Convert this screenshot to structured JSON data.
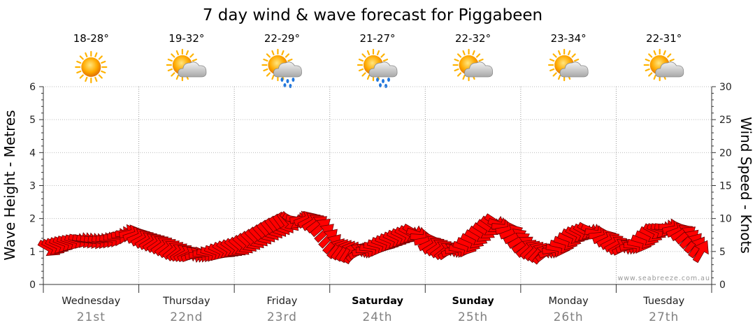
{
  "chart_data": {
    "type": "line",
    "title": "7 day wind & wave forecast for Piggabeen",
    "ylabel": "Wave Height - Metres",
    "y2label": "Wind Speed - Knots",
    "ylim": [
      0,
      6
    ],
    "y2lim": [
      0,
      30
    ],
    "yticks": [
      "0",
      "1",
      "2",
      "3",
      "4",
      "5",
      "6"
    ],
    "y2ticks": [
      "0",
      "5",
      "10",
      "15",
      "20",
      "25",
      "30"
    ],
    "grid": true,
    "days": [
      {
        "day": "Wednesday",
        "date": "21st",
        "temp": "18-28°",
        "weather_icon": "sunny-icon",
        "bold": false
      },
      {
        "day": "Thursday",
        "date": "22nd",
        "temp": "19-32°",
        "weather_icon": "partly-cloudy-icon",
        "bold": false
      },
      {
        "day": "Friday",
        "date": "23rd",
        "temp": "22-29°",
        "weather_icon": "sun-shower-icon",
        "bold": false
      },
      {
        "day": "Saturday",
        "date": "24th",
        "temp": "21-27°",
        "weather_icon": "sun-shower-icon",
        "bold": true
      },
      {
        "day": "Sunday",
        "date": "25th",
        "temp": "22-32°",
        "weather_icon": "partly-cloudy-icon",
        "bold": true
      },
      {
        "day": "Monday",
        "date": "26th",
        "temp": "23-34°",
        "weather_icon": "partly-cloudy-icon",
        "bold": false
      },
      {
        "day": "Tuesday",
        "date": "27th",
        "temp": "22-31°",
        "weather_icon": "partly-cloudy-icon",
        "bold": false
      }
    ],
    "wind_series": {
      "unit": "knots",
      "arrow_color": "#ff0000",
      "points": [
        {
          "t": 0.0,
          "speed": 5.5,
          "dir": 60
        },
        {
          "t": 0.17,
          "speed": 6.3,
          "dir": 70
        },
        {
          "t": 0.33,
          "speed": 6.8,
          "dir": 75
        },
        {
          "t": 0.5,
          "speed": 6.6,
          "dir": 80
        },
        {
          "t": 0.67,
          "speed": 6.9,
          "dir": 85
        },
        {
          "t": 0.83,
          "speed": 8.0,
          "dir": 100
        },
        {
          "t": 1.0,
          "speed": 6.8,
          "dir": 120
        },
        {
          "t": 1.17,
          "speed": 6.0,
          "dir": 125
        },
        {
          "t": 1.33,
          "speed": 5.0,
          "dir": 130
        },
        {
          "t": 1.5,
          "speed": 4.4,
          "dir": 110
        },
        {
          "t": 1.67,
          "speed": 4.7,
          "dir": 80
        },
        {
          "t": 1.83,
          "speed": 5.2,
          "dir": 60
        },
        {
          "t": 2.0,
          "speed": 5.8,
          "dir": 50
        },
        {
          "t": 2.17,
          "speed": 7.0,
          "dir": 45
        },
        {
          "t": 2.33,
          "speed": 8.3,
          "dir": 40
        },
        {
          "t": 2.5,
          "speed": 9.5,
          "dir": 35
        },
        {
          "t": 2.67,
          "speed": 10.0,
          "dir": 110
        },
        {
          "t": 2.83,
          "speed": 9.0,
          "dir": 130
        },
        {
          "t": 3.0,
          "speed": 5.5,
          "dir": 140
        },
        {
          "t": 3.17,
          "speed": 4.8,
          "dir": 150
        },
        {
          "t": 3.33,
          "speed": 5.2,
          "dir": 90
        },
        {
          "t": 3.5,
          "speed": 6.2,
          "dir": 70
        },
        {
          "t": 3.67,
          "speed": 7.2,
          "dir": 65
        },
        {
          "t": 3.83,
          "speed": 8.0,
          "dir": 60
        },
        {
          "t": 4.0,
          "speed": 6.0,
          "dir": 120
        },
        {
          "t": 4.17,
          "speed": 5.0,
          "dir": 130
        },
        {
          "t": 4.33,
          "speed": 5.4,
          "dir": 75
        },
        {
          "t": 4.5,
          "speed": 7.5,
          "dir": 60
        },
        {
          "t": 4.67,
          "speed": 9.5,
          "dir": 55
        },
        {
          "t": 4.83,
          "speed": 8.0,
          "dir": 110
        },
        {
          "t": 5.0,
          "speed": 5.5,
          "dir": 130
        },
        {
          "t": 5.17,
          "speed": 4.6,
          "dir": 140
        },
        {
          "t": 5.33,
          "speed": 5.5,
          "dir": 80
        },
        {
          "t": 5.5,
          "speed": 7.5,
          "dir": 65
        },
        {
          "t": 5.67,
          "speed": 8.3,
          "dir": 60
        },
        {
          "t": 5.83,
          "speed": 7.0,
          "dir": 115
        },
        {
          "t": 6.0,
          "speed": 5.5,
          "dir": 120
        },
        {
          "t": 6.17,
          "speed": 6.0,
          "dir": 80
        },
        {
          "t": 6.33,
          "speed": 8.0,
          "dir": 60
        },
        {
          "t": 6.5,
          "speed": 8.8,
          "dir": 90
        },
        {
          "t": 6.67,
          "speed": 7.5,
          "dir": 130
        },
        {
          "t": 6.83,
          "speed": 5.0,
          "dir": 150
        }
      ]
    }
  },
  "credit": "www.seabreeze.com.au"
}
